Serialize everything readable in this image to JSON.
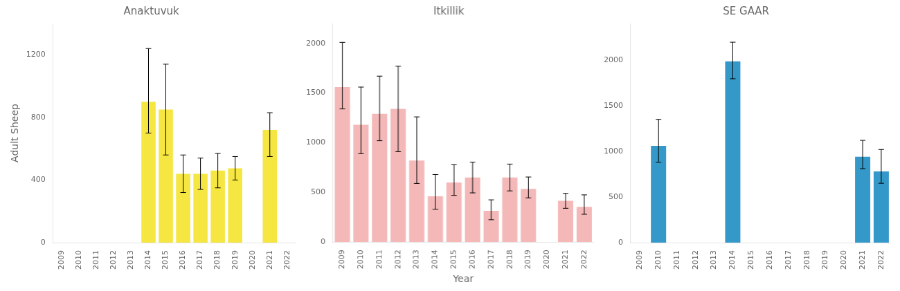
{
  "chart_data": [
    {
      "type": "bar",
      "title": "Anaktuvuk",
      "color": "#F5E642",
      "categories": [
        "2009",
        "2010",
        "2011",
        "2012",
        "2013",
        "2014",
        "2015",
        "2016",
        "2017",
        "2018",
        "2019",
        "2020",
        "2021",
        "2022"
      ],
      "values": [
        null,
        null,
        null,
        null,
        null,
        900,
        850,
        440,
        440,
        460,
        475,
        null,
        720,
        null
      ],
      "errors_lo": [
        null,
        null,
        null,
        null,
        null,
        200,
        290,
        120,
        100,
        110,
        75,
        null,
        170,
        null
      ],
      "errors_hi": [
        null,
        null,
        null,
        null,
        null,
        340,
        290,
        120,
        100,
        110,
        75,
        null,
        110,
        null
      ],
      "ylabel": "Adult Sheep",
      "ylim": [
        0,
        1400
      ],
      "yticks": [
        0,
        400,
        800,
        1200
      ],
      "grid": false
    },
    {
      "type": "bar",
      "title": "Itkillik",
      "color": "#F4B8B8",
      "categories": [
        "2009",
        "2010",
        "2011",
        "2012",
        "2013",
        "2014",
        "2015",
        "2016",
        "2017",
        "2018",
        "2019",
        "2020",
        "2021",
        "2022"
      ],
      "values": [
        1560,
        1180,
        1290,
        1340,
        820,
        460,
        600,
        650,
        315,
        650,
        535,
        null,
        415,
        355
      ],
      "errors_lo": [
        220,
        290,
        270,
        430,
        230,
        130,
        130,
        155,
        90,
        135,
        90,
        null,
        75,
        75
      ],
      "errors_hi": [
        450,
        380,
        380,
        430,
        440,
        220,
        180,
        155,
        110,
        135,
        120,
        null,
        75,
        120
      ],
      "xlabel": "Year",
      "ylim": [
        0,
        2200
      ],
      "yticks": [
        0,
        500,
        1000,
        1500,
        2000
      ],
      "grid": false
    },
    {
      "type": "bar",
      "title": "SE GAAR",
      "color": "#3498C8",
      "categories": [
        "2009",
        "2010",
        "2011",
        "2012",
        "2013",
        "2014",
        "2015",
        "2016",
        "2017",
        "2018",
        "2019",
        "2020",
        "2021",
        "2022"
      ],
      "values": [
        null,
        1060,
        null,
        null,
        null,
        1985,
        null,
        null,
        null,
        null,
        null,
        null,
        940,
        780
      ],
      "errors_lo": [
        null,
        180,
        null,
        null,
        null,
        190,
        null,
        null,
        null,
        null,
        null,
        null,
        130,
        130
      ],
      "errors_hi": [
        null,
        290,
        null,
        null,
        null,
        210,
        null,
        null,
        null,
        null,
        null,
        null,
        180,
        240
      ],
      "ylim": [
        0,
        2400
      ],
      "yticks": [
        0,
        500,
        1000,
        1500,
        2000
      ],
      "grid": false
    }
  ]
}
